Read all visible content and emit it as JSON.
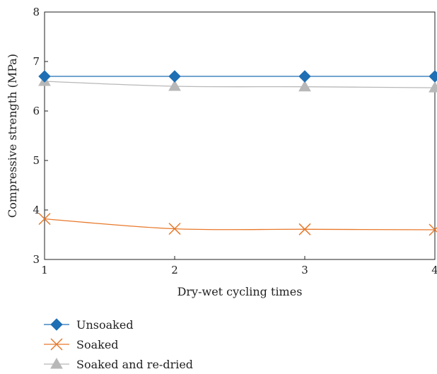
{
  "chart_data": {
    "type": "line",
    "xlabel": "Dry-wet cycling times",
    "ylabel": "Compressive strength (MPa)",
    "x": [
      1,
      2,
      3,
      4
    ],
    "x_ticks": [
      "1",
      "2",
      "3",
      "4"
    ],
    "y_ticks": [
      "3",
      "4",
      "5",
      "6",
      "7",
      "8"
    ],
    "xlim": [
      1,
      4
    ],
    "ylim": [
      3,
      8
    ],
    "grid": false,
    "legend_position": "bottom-left",
    "series": [
      {
        "name": "Unsoaked",
        "values": [
          6.7,
          6.7,
          6.7,
          6.7
        ],
        "color": "#1f6fb4",
        "marker": "diamond"
      },
      {
        "name": "Soaked",
        "values": [
          3.82,
          3.62,
          3.61,
          3.6
        ],
        "color": "#e8782a",
        "marker": "x"
      },
      {
        "name": "Soaked and re-dried",
        "values": [
          6.6,
          6.5,
          6.49,
          6.47
        ],
        "color": "#b8b8b8",
        "marker": "triangle"
      }
    ]
  }
}
